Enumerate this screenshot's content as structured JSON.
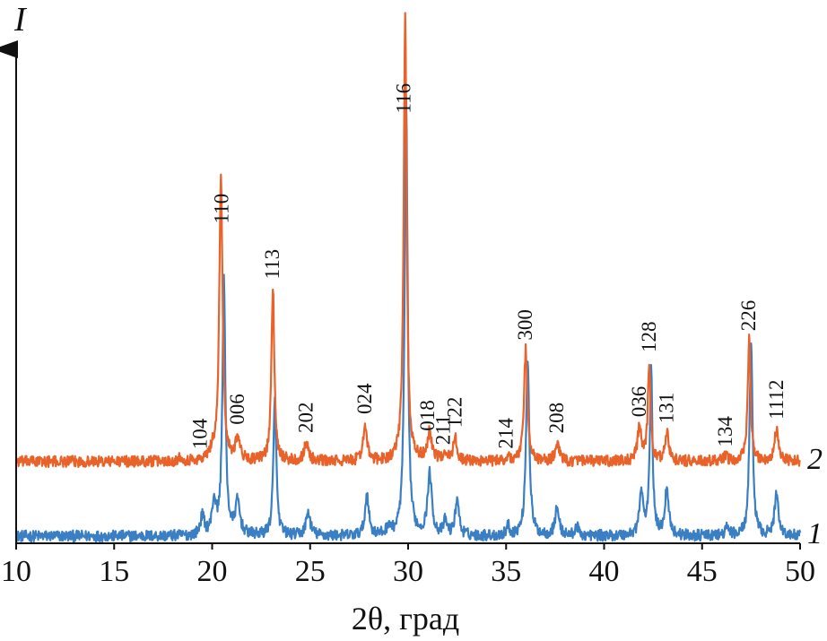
{
  "chart_data": {
    "type": "line",
    "xlabel": "2θ, град",
    "ylabel": "I",
    "xlim": [
      10,
      50
    ],
    "x_ticks": [
      10,
      15,
      20,
      25,
      30,
      35,
      40,
      45,
      50
    ],
    "y_ticks": [],
    "grid": false,
    "legend": "none; series labelled at right end of curves",
    "peaks": [
      {
        "label": "104",
        "x": 19.4
      },
      {
        "label": "110",
        "x": 20.5
      },
      {
        "label": "006",
        "x": 21.3
      },
      {
        "label": "113",
        "x": 23.1
      },
      {
        "label": "202",
        "x": 24.8
      },
      {
        "label": "024",
        "x": 27.8
      },
      {
        "label": "116",
        "x": 29.8
      },
      {
        "label": "018",
        "x": 31.0
      },
      {
        "label": "211",
        "x": 31.8
      },
      {
        "label": "122",
        "x": 32.4
      },
      {
        "label": "214",
        "x": 35.0
      },
      {
        "label": "300",
        "x": 36.0
      },
      {
        "label": "208",
        "x": 37.6
      },
      {
        "label": "036",
        "x": 41.8
      },
      {
        "label": "128",
        "x": 42.3
      },
      {
        "label": "131",
        "x": 43.2
      },
      {
        "label": "134",
        "x": 46.2
      },
      {
        "label": "226",
        "x": 47.4
      },
      {
        "label": "1112",
        "x": 48.8
      }
    ],
    "series": [
      {
        "name": "1",
        "color": "#3a7fc4",
        "baseline": 0.0,
        "peaks": [
          {
            "x": 19.5,
            "height": 0.04,
            "width": 0.12
          },
          {
            "x": 20.1,
            "height": 0.07,
            "width": 0.12
          },
          {
            "x": 20.6,
            "height": 0.55,
            "width": 0.09
          },
          {
            "x": 21.3,
            "height": 0.07,
            "width": 0.14
          },
          {
            "x": 23.2,
            "height": 0.29,
            "width": 0.09
          },
          {
            "x": 24.9,
            "height": 0.05,
            "width": 0.13
          },
          {
            "x": 27.9,
            "height": 0.09,
            "width": 0.11
          },
          {
            "x": 29.0,
            "height": 0.02,
            "width": 0.1
          },
          {
            "x": 29.9,
            "height": 0.93,
            "width": 0.09
          },
          {
            "x": 31.1,
            "height": 0.13,
            "width": 0.13
          },
          {
            "x": 31.9,
            "height": 0.03,
            "width": 0.1
          },
          {
            "x": 32.5,
            "height": 0.08,
            "width": 0.11
          },
          {
            "x": 35.1,
            "height": 0.02,
            "width": 0.1
          },
          {
            "x": 36.1,
            "height": 0.38,
            "width": 0.1
          },
          {
            "x": 37.6,
            "height": 0.06,
            "width": 0.12
          },
          {
            "x": 38.6,
            "height": 0.02,
            "width": 0.1
          },
          {
            "x": 41.9,
            "height": 0.09,
            "width": 0.12
          },
          {
            "x": 42.4,
            "height": 0.36,
            "width": 0.08
          },
          {
            "x": 43.2,
            "height": 0.1,
            "width": 0.12
          },
          {
            "x": 46.3,
            "height": 0.02,
            "width": 0.1
          },
          {
            "x": 47.5,
            "height": 0.42,
            "width": 0.09
          },
          {
            "x": 48.8,
            "height": 0.09,
            "width": 0.12
          }
        ]
      },
      {
        "name": "2",
        "color": "#e8622a",
        "baseline": 0.16,
        "peaks": [
          {
            "x": 18.4,
            "height": 0.01,
            "width": 0.1
          },
          {
            "x": 20.0,
            "height": 0.02,
            "width": 0.12
          },
          {
            "x": 20.45,
            "height": 0.61,
            "width": 0.1
          },
          {
            "x": 21.3,
            "height": 0.05,
            "width": 0.13
          },
          {
            "x": 23.1,
            "height": 0.37,
            "width": 0.09
          },
          {
            "x": 24.8,
            "height": 0.04,
            "width": 0.13
          },
          {
            "x": 27.8,
            "height": 0.08,
            "width": 0.11
          },
          {
            "x": 29.85,
            "height": 0.95,
            "width": 0.09
          },
          {
            "x": 31.1,
            "height": 0.06,
            "width": 0.14
          },
          {
            "x": 31.9,
            "height": 0.02,
            "width": 0.1
          },
          {
            "x": 32.4,
            "height": 0.05,
            "width": 0.11
          },
          {
            "x": 35.1,
            "height": 0.01,
            "width": 0.1
          },
          {
            "x": 36.0,
            "height": 0.24,
            "width": 0.1
          },
          {
            "x": 37.6,
            "height": 0.04,
            "width": 0.12
          },
          {
            "x": 41.8,
            "height": 0.07,
            "width": 0.12
          },
          {
            "x": 42.3,
            "height": 0.21,
            "width": 0.08
          },
          {
            "x": 43.2,
            "height": 0.06,
            "width": 0.12
          },
          {
            "x": 46.2,
            "height": 0.01,
            "width": 0.1
          },
          {
            "x": 47.4,
            "height": 0.26,
            "width": 0.09
          },
          {
            "x": 48.8,
            "height": 0.07,
            "width": 0.12
          }
        ]
      }
    ]
  }
}
